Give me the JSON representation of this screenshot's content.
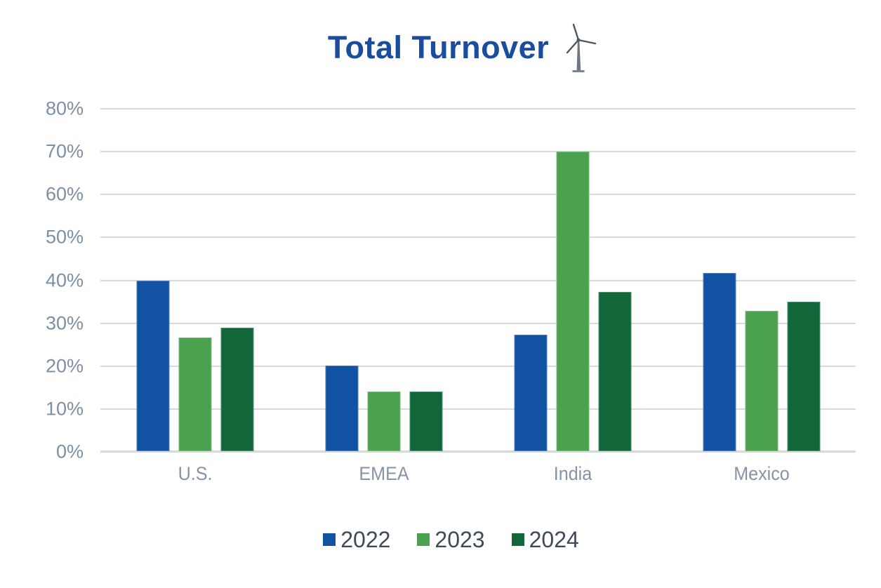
{
  "title": {
    "text": "Total Turnover",
    "icon": "wind-turbine"
  },
  "chart_data": {
    "type": "bar",
    "title": "Total Turnover",
    "categories": [
      "U.S.",
      "EMEA",
      "India",
      "Mexico"
    ],
    "series": [
      {
        "name": "2022",
        "color": "#1252a2",
        "values": [
          39.8,
          19.9,
          27.2,
          41.5
        ]
      },
      {
        "name": "2023",
        "color": "#4aa14e",
        "values": [
          26.5,
          13.9,
          69.9,
          32.7
        ]
      },
      {
        "name": "2024",
        "color": "#11673a",
        "values": [
          28.8,
          13.9,
          37.1,
          34.9
        ]
      }
    ],
    "xlabel": "",
    "ylabel": "",
    "ylim": [
      0,
      80
    ],
    "yticks": [
      0,
      10,
      20,
      30,
      40,
      50,
      60,
      70,
      80
    ],
    "ytick_labels": [
      "0%",
      "10%",
      "20%",
      "30%",
      "40%",
      "50%",
      "60%",
      "70%",
      "80%"
    ],
    "grid": true,
    "legend_position": "bottom"
  },
  "style": {
    "background": "#ffffff",
    "title_color": "#1a4d9d",
    "gridline_color": "#d9d9d9",
    "ytick_color": "#7d8fa4",
    "xlabel_color": "#8593a6",
    "legend_text_color": "#3f4a59",
    "turbine_color": "#4e5760"
  }
}
